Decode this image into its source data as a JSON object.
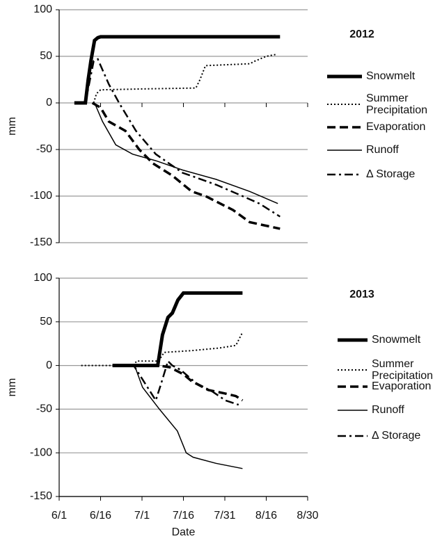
{
  "chart_data": [
    {
      "type": "line",
      "title": "2012",
      "ylabel": "mm",
      "xlim": [
        0,
        90
      ],
      "xticks": [
        0,
        15,
        30,
        45,
        60,
        75,
        90
      ],
      "ylim": [
        -150,
        100
      ],
      "yticks": [
        -150,
        -100,
        -50,
        0,
        50,
        100
      ],
      "grid": true,
      "series": [
        {
          "name": "Snowmelt",
          "color": "#000000",
          "style": "solid",
          "linewidth": 5,
          "x": [
            5.5,
            9.5,
            10.5,
            11.5,
            12.8,
            14,
            15,
            80
          ],
          "values": [
            0,
            0,
            25,
            45,
            67,
            70,
            71,
            71
          ]
        },
        {
          "name": "Summer Precipitation",
          "color": "#000000",
          "style": "dotted",
          "linewidth": 2,
          "x": [
            12.5,
            13.5,
            15,
            30,
            49.5,
            51,
            53,
            69,
            71,
            75,
            78.5
          ],
          "values": [
            0,
            10,
            14,
            15,
            16,
            25,
            40,
            42,
            45,
            50,
            52
          ]
        },
        {
          "name": "Evaporation",
          "color": "#000000",
          "style": "dashed",
          "linewidth": 3.5,
          "x": [
            12,
            15,
            18,
            24,
            29,
            34,
            41,
            48,
            53,
            63,
            69,
            80
          ],
          "values": [
            0,
            -5,
            -20,
            -30,
            -50,
            -65,
            -78,
            -95,
            -100,
            -115,
            -128,
            -135
          ]
        },
        {
          "name": "Runoff",
          "color": "#000000",
          "style": "solid",
          "linewidth": 1.5,
          "x": [
            12.8,
            15.7,
            20.5,
            26.6,
            35,
            44.7,
            56.8,
            69,
            79.2
          ],
          "values": [
            0,
            -20,
            -45,
            -55,
            -62,
            -72,
            -82,
            -95,
            -108
          ]
        },
        {
          "name": "Δ Storage",
          "color": "#000000",
          "style": "dashdot",
          "linewidth": 2.5,
          "x": [
            9.5,
            12.5,
            14,
            18,
            21.7,
            27.8,
            35,
            44.7,
            49.5,
            57,
            66.4,
            72.5,
            80
          ],
          "values": [
            0,
            45,
            47,
            20,
            0,
            -30,
            -55,
            -75,
            -80,
            -88,
            -100,
            -108,
            -122
          ]
        }
      ]
    },
    {
      "type": "line",
      "title": "2013",
      "ylabel": "mm",
      "xlabel": "Date",
      "xlim": [
        0,
        90
      ],
      "xticks": [
        {
          "value": 0,
          "label": "6/1"
        },
        {
          "value": 15,
          "label": "6/16"
        },
        {
          "value": 30,
          "label": "7/1"
        },
        {
          "value": 45,
          "label": "7/16"
        },
        {
          "value": 60,
          "label": "7/31"
        },
        {
          "value": 75,
          "label": "8/16"
        },
        {
          "value": 90,
          "label": "8/30"
        }
      ],
      "ylim": [
        -150,
        100
      ],
      "yticks": [
        -150,
        -100,
        -50,
        0,
        50,
        100
      ],
      "grid": true,
      "series": [
        {
          "name": "Snowmelt",
          "color": "#000000",
          "style": "solid",
          "linewidth": 5,
          "x": [
            19.3,
            35.7,
            37.4,
            39.4,
            41,
            43,
            45,
            66.4
          ],
          "values": [
            0,
            0,
            35,
            55,
            60,
            75,
            83,
            83
          ]
        },
        {
          "name": "Summer Precipitation",
          "color": "#000000",
          "style": "dotted",
          "linewidth": 2,
          "x": [
            8,
            27,
            28,
            36,
            38,
            48,
            58,
            64,
            66.4
          ],
          "values": [
            0,
            0,
            5,
            5,
            15,
            17,
            20,
            23,
            38
          ]
        },
        {
          "name": "Evaporation",
          "color": "#000000",
          "style": "dashed",
          "linewidth": 3.5,
          "x": [
            19.3,
            36,
            40,
            45,
            48,
            54,
            60,
            64,
            66.4
          ],
          "values": [
            0,
            0,
            -2,
            -10,
            -18,
            -28,
            -32,
            -35,
            -40
          ]
        },
        {
          "name": "Runoff",
          "color": "#000000",
          "style": "solid",
          "linewidth": 1.5,
          "x": [
            19.3,
            27.3,
            30.2,
            36.3,
            42.8,
            46,
            48.5,
            56.8,
            66.4
          ],
          "values": [
            0,
            0,
            -25,
            -50,
            -75,
            -100,
            -105,
            -112,
            -118
          ]
        },
        {
          "name": "Δ Storage",
          "color": "#000000",
          "style": "dashdot",
          "linewidth": 2.5,
          "x": [
            19.3,
            27,
            35,
            37,
            39.4,
            41,
            44,
            49.5,
            55.6,
            60.2,
            65
          ],
          "values": [
            0,
            0,
            -40,
            -20,
            5,
            0,
            -5,
            -20,
            -30,
            -40,
            -45
          ]
        }
      ]
    }
  ]
}
